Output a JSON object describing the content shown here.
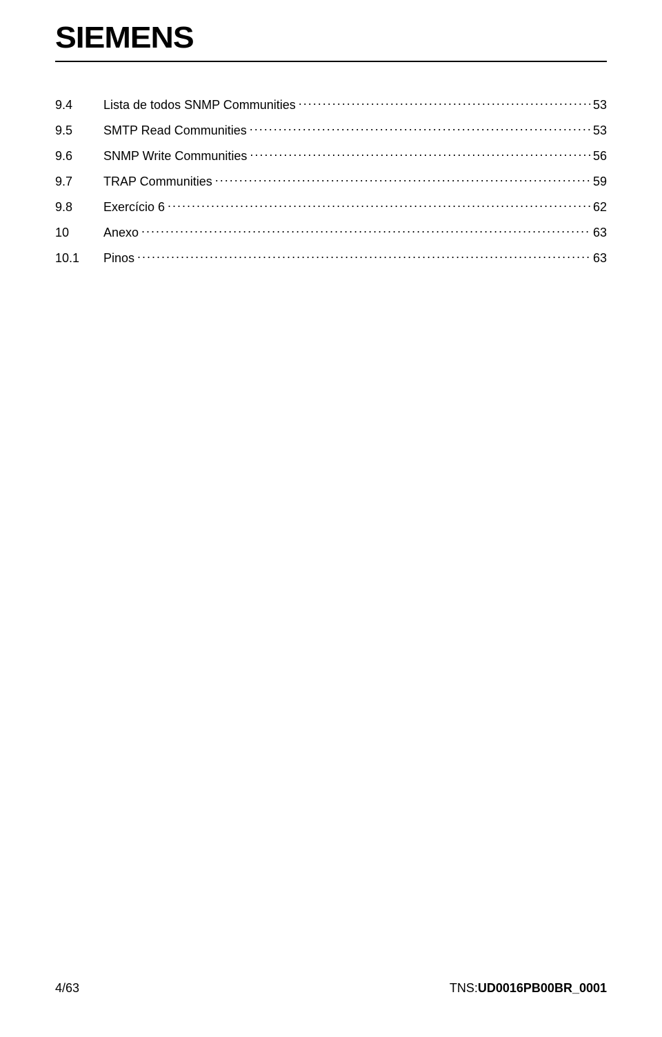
{
  "header": {
    "logo": "SIEMENS"
  },
  "toc": {
    "entries": [
      {
        "num": "9.4",
        "title": "Lista de todos SNMP Communities",
        "page": "53"
      },
      {
        "num": "9.5",
        "title": "SMTP Read Communities",
        "page": "53"
      },
      {
        "num": "9.6",
        "title": "SNMP Write Communities",
        "page": "56"
      },
      {
        "num": "9.7",
        "title": "TRAP Communities",
        "page": "59"
      },
      {
        "num": "9.8",
        "title": "Exercício 6",
        "page": "62"
      },
      {
        "num": "10",
        "title": "Anexo",
        "page": "63"
      },
      {
        "num": "10.1",
        "title": "Pinos",
        "page": "63"
      }
    ]
  },
  "footer": {
    "page_indicator": "4/63",
    "doc_label": "TNS:",
    "doc_code": "UD0016PB00BR_0001"
  },
  "colors": {
    "text": "#000000",
    "background": "#ffffff",
    "rule": "#000000"
  },
  "fonts": {
    "body_family": "Arial, Helvetica, sans-serif",
    "body_size_pt": 14,
    "logo_size_pt": 33,
    "logo_weight": 900
  }
}
